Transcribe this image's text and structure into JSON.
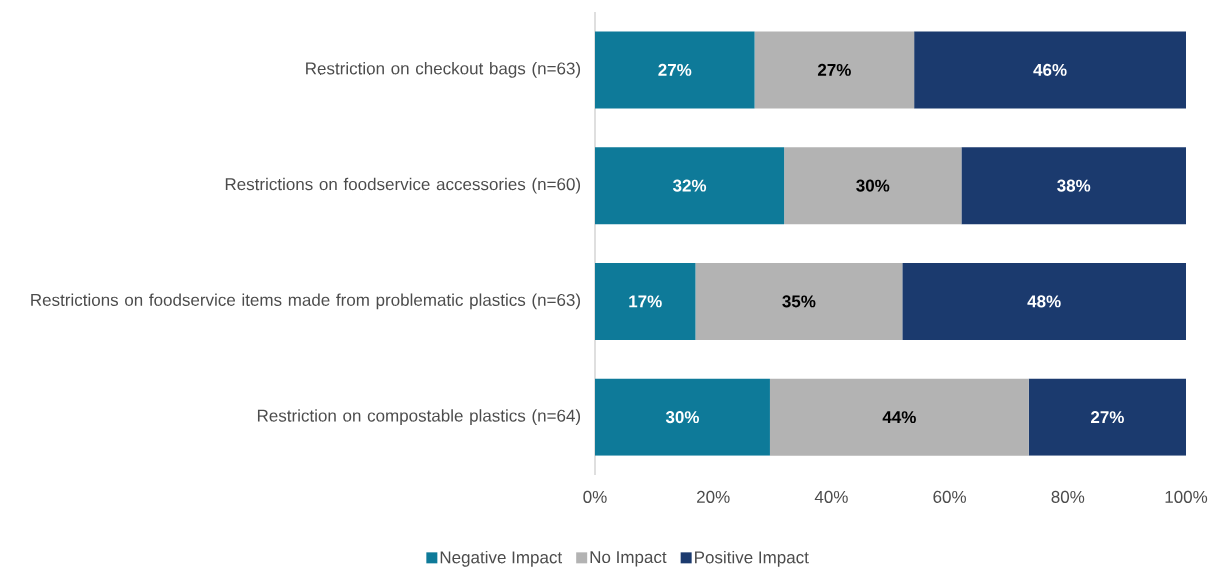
{
  "chart_data": {
    "type": "bar",
    "orientation": "horizontal",
    "stacked": true,
    "categories": [
      "Restriction on checkout bags (n=63)",
      "Restrictions on foodservice accessories (n=60)",
      "Restrictions on foodservice items made from problematic plastics (n=63)",
      "Restriction on compostable plastics (n=64)"
    ],
    "series": [
      {
        "name": "Negative Impact",
        "color": "#0e7a99",
        "values": [
          27,
          32,
          17,
          29.6
        ],
        "value_labels": [
          "27%",
          "32%",
          "17%",
          "30%"
        ]
      },
      {
        "name": "No Impact",
        "color": "#b3b3b3",
        "values": [
          27,
          30,
          35,
          43.8
        ],
        "value_labels": [
          "27%",
          "30%",
          "35%",
          "44%"
        ]
      },
      {
        "name": "Positive Impact",
        "color": "#1b3a6e",
        "values": [
          46,
          38,
          48,
          26.6
        ],
        "value_labels": [
          "46%",
          "38%",
          "48%",
          "27%"
        ]
      }
    ],
    "xlim": [
      0,
      100
    ],
    "xticks": [
      {
        "value": 0,
        "label": "0%"
      },
      {
        "value": 20,
        "label": "20%"
      },
      {
        "value": 40,
        "label": "40%"
      },
      {
        "value": 60,
        "label": "60%"
      },
      {
        "value": 80,
        "label": "80%"
      },
      {
        "value": 100,
        "label": "100%"
      }
    ],
    "legend": "bottom",
    "grid": false
  }
}
